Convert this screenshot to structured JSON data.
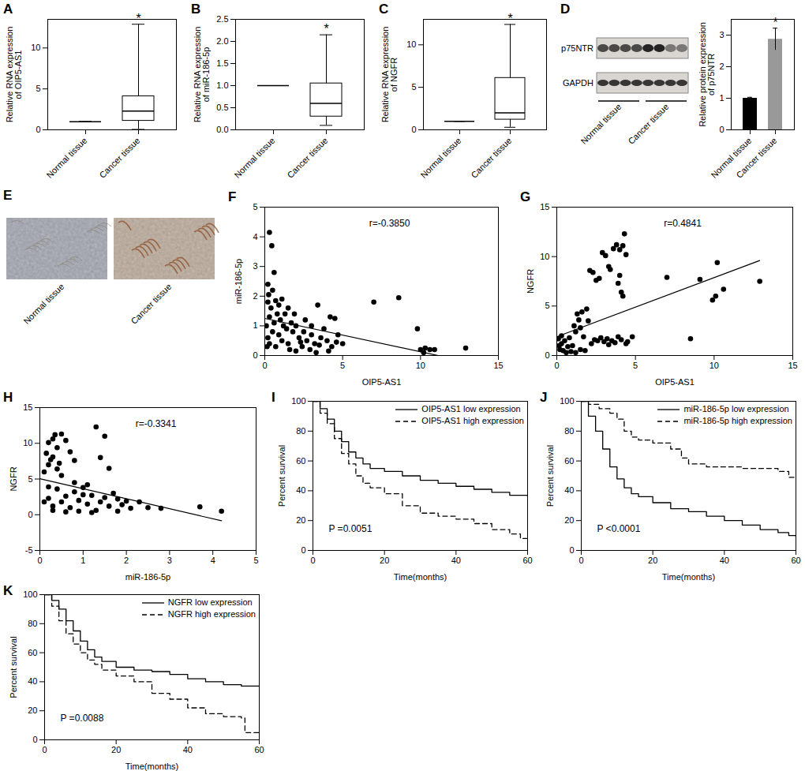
{
  "chart_data": [
    {
      "panel": "A",
      "type": "box",
      "ylabel": "Relative RNA expression of OIP5-AS1",
      "categories": [
        "Normal tissue",
        "Cancer tissue"
      ],
      "whisker_low": [
        1,
        0.05
      ],
      "q1": [
        1,
        1.1
      ],
      "median": [
        1,
        2.3
      ],
      "q3": [
        1,
        4.1
      ],
      "whisker_high": [
        1,
        12.9
      ],
      "color": "#000000",
      "ylim": [
        0,
        13.5
      ],
      "yticks": [
        0,
        5,
        10
      ],
      "annotations": [
        {
          "text": "*",
          "category": "Cancer tissue"
        }
      ]
    },
    {
      "panel": "B",
      "type": "box",
      "ylabel": "Relative RNA expression of miR-186-5p",
      "categories": [
        "Normal tissue",
        "Cancer tissue"
      ],
      "whisker_low": [
        1,
        0.1
      ],
      "q1": [
        1,
        0.3
      ],
      "median": [
        1,
        0.6
      ],
      "q3": [
        1,
        1.05
      ],
      "whisker_high": [
        1,
        2.15
      ],
      "color": "#000000",
      "ylim": [
        0,
        2.5
      ],
      "yticks": [
        {
          "value": 0,
          "label": "0.0"
        },
        {
          "value": 0.5,
          "label": "0.5"
        },
        {
          "value": 1,
          "label": "1.0"
        },
        {
          "value": 1.5,
          "label": "1.5"
        },
        {
          "value": 2,
          "label": "2.0"
        },
        {
          "value": 2.5,
          "label": "2.5"
        }
      ],
      "annotations": [
        {
          "text": "*",
          "category": "Cancer tissue"
        }
      ]
    },
    {
      "panel": "C",
      "type": "box",
      "ylabel": "Relative RNA expression of NGFR",
      "categories": [
        "Normal tissue",
        "Cancer tissue"
      ],
      "whisker_low": [
        1,
        0.3
      ],
      "q1": [
        1,
        1.2
      ],
      "median": [
        1,
        2.0
      ],
      "q3": [
        1,
        6.1
      ],
      "whisker_high": [
        1,
        12.4
      ],
      "color": "#000000",
      "ylim": [
        0,
        13
      ],
      "yticks": [
        0,
        5,
        10
      ],
      "annotations": [
        {
          "text": "*",
          "category": "Cancer tissue"
        }
      ]
    },
    {
      "panel": "D",
      "type": "blot",
      "rows": [
        "p75NTR",
        "GAPDH"
      ],
      "categories": [
        "Normal tissue",
        "Cancer tissue"
      ]
    },
    {
      "panel": "D",
      "type": "bar",
      "ylabel": "Relative protein expression of p75NTR",
      "categories": [
        "Normal tissue",
        "Cancer tissue"
      ],
      "values": [
        1.0,
        2.87
      ],
      "errors": [
        0.03,
        0.35
      ],
      "colors": [
        "#000000",
        "#999999"
      ],
      "ylim": [
        0,
        3.5
      ],
      "yticks": [
        0,
        1,
        2,
        3
      ],
      "annotations": [
        {
          "text": "*",
          "category": "Cancer tissue"
        }
      ]
    },
    {
      "panel": "E",
      "type": "image",
      "categories": [
        "Normal tissue",
        "Cancer tissue"
      ]
    },
    {
      "panel": "F",
      "type": "scatter",
      "xlabel": "OIP5-AS1",
      "ylabel": "miR-186-5p",
      "color": "#000000",
      "x": [
        0.2,
        0.3,
        0.45,
        0.6,
        0.25,
        0.5,
        0.2,
        0.4,
        0.7,
        0.9,
        1.1,
        0.8,
        0.3,
        0.6,
        1.0,
        1.3,
        1.5,
        1.2,
        0.5,
        0.9,
        1.4,
        1.7,
        2.0,
        1.8,
        0.3,
        0.7,
        1.1,
        1.5,
        2.2,
        2.5,
        2.7,
        2.4,
        3.0,
        3.2,
        3.4,
        2.9,
        3.6,
        3.8,
        4.0,
        4.2,
        4.5,
        4.3,
        4.7,
        4.1,
        3.3,
        2.0,
        1.6,
        2.6,
        3.0,
        3.5,
        0.15,
        0.1,
        0.2,
        1.9,
        2.3,
        4.6,
        5.0,
        7.0,
        8.6,
        9.8,
        10.0,
        10.3,
        10.6,
        10.9,
        12.9,
        10.2
      ],
      "values": [
        2.4,
        4.15,
        3.7,
        2.8,
        2.05,
        2.2,
        1.8,
        1.6,
        1.85,
        1.7,
        1.9,
        1.4,
        1.3,
        1.1,
        1.2,
        1.4,
        1.6,
        1.0,
        0.8,
        0.7,
        0.9,
        1.1,
        1.0,
        0.8,
        0.4,
        0.3,
        0.5,
        0.4,
        0.6,
        0.8,
        0.5,
        0.3,
        0.7,
        0.4,
        1.7,
        0.2,
        0.6,
        0.9,
        0.5,
        1.3,
        1.25,
        0.3,
        0.7,
        0.15,
        0.1,
        0.15,
        0.2,
        1.2,
        1.0,
        0.35,
        0.3,
        1.0,
        0.6,
        1.4,
        0.45,
        0.45,
        0.4,
        1.8,
        1.95,
        0.9,
        0.2,
        0.25,
        0.2,
        0.2,
        0.25,
        0.1
      ],
      "fit_line": {
        "x": [
          0,
          12.9
        ],
        "y": [
          1.25,
          -0.2
        ]
      },
      "xlim": [
        0,
        15
      ],
      "xticks": [
        0,
        5,
        10,
        15
      ],
      "ylim": [
        0,
        5
      ],
      "yticks": [
        0,
        1,
        2,
        3,
        4,
        5
      ],
      "annotations": [
        {
          "text": "r=-0.3850"
        }
      ]
    },
    {
      "panel": "G",
      "type": "scatter",
      "xlabel": "OIP5-AS1",
      "ylabel": "NGFR",
      "color": "#000000",
      "x": [
        0.1,
        0.2,
        0.3,
        0.4,
        0.5,
        0.6,
        0.7,
        0.8,
        0.9,
        1.0,
        0.3,
        0.15,
        1.1,
        1.2,
        1.3,
        1.4,
        1.5,
        1.6,
        1.7,
        1.8,
        1.2,
        1.5,
        1.9,
        2.0,
        2.1,
        2.3,
        2.5,
        2.7,
        2.9,
        3.1,
        3.3,
        3.4,
        3.6,
        3.8,
        4.0,
        4.2,
        4.3,
        4.4,
        4.1,
        4.2,
        3.9,
        4.0,
        2.4,
        2.6,
        2.8,
        3.0,
        3.2,
        3.5,
        3.7,
        3.9,
        4.1,
        4.5,
        4.8,
        2.2,
        3.3,
        4.4,
        7.0,
        8.5,
        9.1,
        9.9,
        10.1,
        10.2,
        10.6,
        12.9
      ],
      "values": [
        1.7,
        0.6,
        1.2,
        0.5,
        1.5,
        0.3,
        0.9,
        1.8,
        0.4,
        1.0,
        2.0,
        1.0,
        3.0,
        2.4,
        4.2,
        3.6,
        2.8,
        4.4,
        1.9,
        0.5,
        0.3,
        0.6,
        4.7,
        3.5,
        8.6,
        8.4,
        7.6,
        7.8,
        10.4,
        10.1,
        9.0,
        8.7,
        10.8,
        11.2,
        10.7,
        11.1,
        12.3,
        10.2,
        6.4,
        6.0,
        7.3,
        8.1,
        1.6,
        1.5,
        1.8,
        1.4,
        1.7,
        1.5,
        1.3,
        1.9,
        1.6,
        1.4,
        1.9,
        1.2,
        1.1,
        1.2,
        7.9,
        1.7,
        7.7,
        5.6,
        6.0,
        9.4,
        6.7,
        7.5
      ],
      "fit_line": {
        "x": [
          0,
          12.9
        ],
        "y": [
          1.9,
          9.6
        ]
      },
      "xlim": [
        0,
        15
      ],
      "xticks": [
        0,
        5,
        10,
        15
      ],
      "ylim": [
        0,
        15
      ],
      "yticks": [
        0,
        5,
        10,
        15
      ],
      "annotations": [
        {
          "text": "r=0.4841"
        }
      ]
    },
    {
      "panel": "H",
      "type": "scatter",
      "xlabel": "miR-186-5p",
      "ylabel": "NGFR",
      "color": "#000000",
      "x": [
        0.1,
        0.15,
        0.2,
        0.25,
        0.3,
        0.35,
        0.4,
        0.45,
        0.5,
        0.3,
        0.2,
        0.4,
        0.5,
        0.6,
        0.7,
        0.8,
        1.3,
        1.4,
        1.5,
        1.6,
        0.1,
        0.2,
        0.3,
        0.4,
        0.5,
        0.6,
        0.7,
        0.8,
        0.9,
        1.0,
        1.1,
        1.2,
        1.3,
        1.4,
        1.5,
        1.6,
        1.7,
        1.8,
        1.9,
        2.0,
        2.1,
        2.3,
        2.5,
        0.9,
        0.6,
        1.2,
        0.3,
        1.8,
        1.1,
        0.8,
        3.7,
        4.2,
        2.8,
        0.2,
        1.0
      ],
      "values": [
        6.0,
        8.6,
        10.1,
        7.7,
        10.6,
        11.2,
        9.4,
        7.2,
        11.3,
        8.1,
        7.0,
        6.4,
        5.5,
        10.4,
        8.8,
        7.6,
        12.3,
        8.0,
        11.0,
        6.5,
        1.8,
        2.3,
        1.2,
        3.6,
        1.8,
        2.6,
        1.0,
        4.5,
        2.0,
        3.8,
        1.5,
        2.7,
        0.6,
        1.8,
        2.4,
        1.2,
        3.0,
        2.2,
        1.4,
        1.9,
        0.9,
        1.8,
        1.0,
        0.5,
        0.4,
        0.3,
        0.6,
        0.5,
        4.2,
        3.2,
        1.1,
        0.5,
        0.9,
        3.9,
        2.8
      ],
      "fit_line": {
        "x": [
          0,
          4.2
        ],
        "y": [
          5.05,
          -0.85
        ]
      },
      "xlim": [
        0,
        5
      ],
      "xticks": [
        0,
        1,
        2,
        3,
        4,
        5
      ],
      "ylim": [
        -5,
        15
      ],
      "yticks": [
        -5,
        0,
        5,
        10,
        15
      ],
      "annotations": [
        {
          "text": "r=-0.3341"
        }
      ]
    },
    {
      "panel": "I",
      "type": "survival",
      "xlabel": "Time(months)",
      "ylabel": "Percent survival",
      "series": [
        {
          "name": "OIP5-AS1 low expression",
          "color": "#000000",
          "line_style": "solid",
          "x": [
            0,
            2,
            4,
            6,
            8,
            10,
            12,
            14,
            16,
            20,
            25,
            30,
            35,
            40,
            45,
            50,
            55,
            60
          ],
          "values": [
            100,
            95,
            88,
            80,
            73,
            66,
            62,
            58,
            55,
            53,
            50,
            47,
            45,
            43,
            41,
            39,
            37,
            36
          ]
        },
        {
          "name": "OIP5-AS1 high expression",
          "color": "#000000",
          "line_style": "dashed",
          "x": [
            0,
            2,
            4,
            6,
            8,
            10,
            12,
            14,
            16,
            20,
            25,
            30,
            35,
            40,
            45,
            50,
            55,
            58,
            60
          ],
          "values": [
            100,
            92,
            85,
            75,
            65,
            58,
            50,
            45,
            42,
            38,
            30,
            25,
            23,
            21,
            18,
            14,
            11,
            8,
            8
          ]
        }
      ],
      "xlim": [
        0,
        60
      ],
      "xticks": [
        0,
        20,
        40,
        60
      ],
      "ylim": [
        0,
        100
      ],
      "yticks": [
        0,
        20,
        40,
        60,
        80,
        100
      ],
      "annotations": [
        {
          "text": "P =0.0051"
        }
      ]
    },
    {
      "panel": "J",
      "type": "survival",
      "xlabel": "Time(months)",
      "ylabel": "Percent survival",
      "series": [
        {
          "name": "miR-186-5p low expression",
          "color": "#000000",
          "line_style": "solid",
          "x": [
            0,
            2,
            4,
            6,
            8,
            10,
            12,
            14,
            16,
            20,
            25,
            30,
            35,
            40,
            45,
            50,
            55,
            58,
            60
          ],
          "values": [
            100,
            90,
            80,
            68,
            56,
            48,
            42,
            38,
            36,
            32,
            28,
            26,
            23,
            20,
            17,
            14,
            12,
            10,
            9
          ]
        },
        {
          "name": "miR-186-5p high expression",
          "color": "#000000",
          "line_style": "dashed",
          "x": [
            0,
            2,
            5,
            8,
            10,
            12,
            14,
            16,
            20,
            25,
            28,
            30,
            35,
            40,
            45,
            50,
            55,
            58,
            60
          ],
          "values": [
            100,
            98,
            95,
            92,
            88,
            80,
            76,
            74,
            72,
            68,
            62,
            58,
            56,
            56,
            55,
            55,
            53,
            49,
            49
          ]
        }
      ],
      "xlim": [
        0,
        60
      ],
      "xticks": [
        0,
        20,
        40,
        60
      ],
      "ylim": [
        0,
        100
      ],
      "yticks": [
        0,
        20,
        40,
        60,
        80,
        100
      ],
      "annotations": [
        {
          "text": "P <0.0001"
        }
      ]
    },
    {
      "panel": "K",
      "type": "survival",
      "xlabel": "Time(months)",
      "ylabel": "Percent survival",
      "series": [
        {
          "name": "NGFR low expression",
          "color": "#000000",
          "line_style": "solid",
          "x": [
            0,
            2,
            4,
            6,
            8,
            10,
            12,
            14,
            16,
            20,
            25,
            30,
            35,
            40,
            45,
            50,
            55,
            60
          ],
          "values": [
            100,
            96,
            90,
            82,
            75,
            68,
            62,
            57,
            54,
            50,
            48,
            47,
            45,
            42,
            40,
            38,
            37,
            37
          ]
        },
        {
          "name": "NGFR high expression",
          "color": "#000000",
          "line_style": "dashed",
          "x": [
            0,
            2,
            4,
            6,
            8,
            10,
            12,
            14,
            16,
            20,
            25,
            30,
            35,
            40,
            45,
            50,
            55,
            56,
            60
          ],
          "values": [
            100,
            92,
            82,
            73,
            66,
            60,
            55,
            52,
            48,
            44,
            40,
            32,
            28,
            22,
            18,
            16,
            15,
            5,
            5
          ]
        }
      ],
      "xlim": [
        0,
        60
      ],
      "xticks": [
        0,
        20,
        40,
        60
      ],
      "ylim": [
        0,
        100
      ],
      "yticks": [
        0,
        20,
        40,
        60,
        80,
        100
      ],
      "annotations": [
        {
          "text": "P =0.0088"
        }
      ]
    }
  ]
}
